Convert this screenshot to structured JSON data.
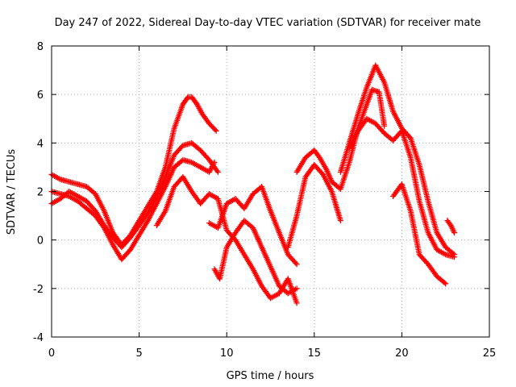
{
  "chart_data": {
    "type": "scatter",
    "title": "Day 247 of 2022, Sidereal Day-to-day VTEC variation (SDTVAR) for receiver mate",
    "xlabel": "GPS time / hours",
    "ylabel": "SDTVAR / TECUs",
    "xlim": [
      0,
      25
    ],
    "ylim": [
      -4,
      8
    ],
    "xticks": [
      0,
      5,
      10,
      15,
      20,
      25
    ],
    "yticks": [
      -4,
      -2,
      0,
      2,
      4,
      6,
      8
    ],
    "grid": true,
    "marker": "+",
    "color": "#ff0000",
    "series": [
      {
        "name": "satellite-track-1",
        "x": [
          0.0,
          0.5,
          1.0,
          1.5,
          2.0,
          2.5,
          3.0,
          3.5,
          4.0,
          4.5,
          5.0,
          5.5,
          6.0,
          6.5,
          7.0,
          7.5,
          7.8,
          8.0,
          8.3,
          8.6,
          9.0,
          9.4
        ],
        "y": [
          2.7,
          2.5,
          2.4,
          2.3,
          2.2,
          1.9,
          1.2,
          0.3,
          -0.2,
          0.2,
          0.8,
          1.4,
          2.0,
          3.0,
          4.6,
          5.6,
          5.9,
          5.9,
          5.6,
          5.2,
          4.8,
          4.5
        ]
      },
      {
        "name": "satellite-track-2",
        "x": [
          0.0,
          0.5,
          1.0,
          1.5,
          2.0,
          2.5,
          3.0,
          3.5,
          4.0,
          4.5,
          5.0,
          5.5,
          6.0,
          6.5,
          7.0,
          7.5,
          8.0,
          8.5,
          9.0,
          9.5
        ],
        "y": [
          1.5,
          1.7,
          2.0,
          1.8,
          1.6,
          1.2,
          0.6,
          0.1,
          -0.3,
          0.1,
          0.6,
          1.1,
          1.8,
          2.6,
          3.5,
          3.9,
          4.0,
          3.7,
          3.3,
          2.8
        ]
      },
      {
        "name": "satellite-track-3",
        "x": [
          0.0,
          0.5,
          1.0,
          1.5,
          2.0,
          2.5,
          3.0,
          3.5,
          4.0,
          4.5,
          5.0,
          5.5,
          6.0,
          6.5,
          7.0,
          7.5,
          8.0,
          8.5,
          9.0,
          9.3
        ],
        "y": [
          2.0,
          1.9,
          1.8,
          1.6,
          1.3,
          1.0,
          0.5,
          -0.2,
          -0.8,
          -0.4,
          0.2,
          0.8,
          1.5,
          2.2,
          3.0,
          3.3,
          3.2,
          3.0,
          2.8,
          3.2
        ]
      },
      {
        "name": "satellite-track-4",
        "x": [
          6.0,
          6.5,
          7.0,
          7.5,
          8.0,
          8.5,
          9.0,
          9.5,
          10.0,
          10.5,
          11.0,
          11.5,
          12.0,
          12.5,
          13.0,
          13.5,
          14.0
        ],
        "y": [
          0.6,
          1.2,
          2.2,
          2.6,
          2.0,
          1.5,
          1.9,
          1.7,
          0.4,
          0.0,
          -0.6,
          -1.2,
          -1.9,
          -2.4,
          -2.2,
          -1.6,
          -2.6
        ]
      },
      {
        "name": "satellite-track-5",
        "x": [
          9.0,
          9.5,
          10.0,
          10.5,
          11.0,
          11.5,
          12.0,
          12.5,
          13.0,
          13.5,
          14.0
        ],
        "y": [
          0.7,
          0.5,
          1.5,
          1.7,
          1.3,
          1.9,
          2.2,
          1.2,
          0.3,
          -0.6,
          -1.0
        ]
      },
      {
        "name": "satellite-track-6",
        "x": [
          9.3,
          9.6,
          10.0,
          10.5,
          11.0,
          11.5,
          12.0,
          12.5,
          13.0,
          13.5,
          14.0
        ],
        "y": [
          -1.2,
          -1.6,
          -0.3,
          0.3,
          0.8,
          0.5,
          -0.3,
          -1.1,
          -1.9,
          -2.2,
          -2.0
        ]
      },
      {
        "name": "satellite-track-7",
        "x": [
          13.5,
          14.0,
          14.5,
          15.0,
          15.5,
          16.0,
          16.5
        ],
        "y": [
          -0.3,
          1.0,
          2.6,
          3.1,
          2.7,
          2.0,
          0.8
        ]
      },
      {
        "name": "satellite-track-8",
        "x": [
          14.0,
          14.5,
          15.0,
          15.3,
          15.7,
          16.0,
          16.5,
          17.0,
          17.5,
          18.0,
          18.3,
          18.7,
          19.0
        ],
        "y": [
          2.8,
          3.4,
          3.7,
          3.4,
          2.9,
          2.4,
          2.1,
          3.2,
          4.6,
          5.6,
          6.2,
          6.1,
          4.7
        ]
      },
      {
        "name": "satellite-track-9",
        "x": [
          16.5,
          17.0,
          17.5,
          18.0,
          18.5,
          19.0,
          19.5,
          20.0,
          20.5,
          21.0,
          21.5,
          22.0,
          22.5,
          23.0
        ],
        "y": [
          2.8,
          4.0,
          5.2,
          6.3,
          7.2,
          6.5,
          5.3,
          4.6,
          4.2,
          3.1,
          1.6,
          0.3,
          -0.3,
          -0.6
        ]
      },
      {
        "name": "satellite-track-10",
        "x": [
          17.0,
          17.5,
          18.0,
          18.5,
          19.0,
          19.5,
          20.0,
          20.5,
          21.0,
          21.5,
          22.0,
          22.5,
          23.0
        ],
        "y": [
          3.8,
          4.5,
          5.0,
          4.8,
          4.4,
          4.1,
          4.5,
          3.4,
          1.6,
          0.3,
          -0.4,
          -0.6,
          -0.7
        ]
      },
      {
        "name": "satellite-track-11",
        "x": [
          19.5,
          20.0,
          20.5,
          21.0,
          21.5,
          22.0,
          22.5
        ],
        "y": [
          1.8,
          2.3,
          1.2,
          -0.6,
          -1.0,
          -1.5,
          -1.8
        ]
      },
      {
        "name": "satellite-track-12",
        "x": [
          22.6,
          22.8,
          23.0
        ],
        "y": [
          0.8,
          0.6,
          0.3
        ]
      }
    ]
  }
}
